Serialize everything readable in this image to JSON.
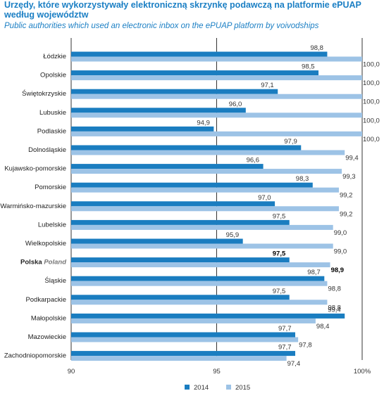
{
  "title": "Urzędy, które wykorzystywały elektroniczną skrzynkę podawczą na platformie ePUAP według województw",
  "subtitle": "Public authorities which used an electronic inbox on the ePUAP platform by voivodships",
  "colors": {
    "s2014": "#1a7dc0",
    "s2015": "#9dc3e6"
  },
  "chart_data": {
    "type": "bar",
    "orientation": "horizontal",
    "categories": [
      "Łódzkie",
      "Opolskie",
      "Świętokrzyskie",
      "Lubuskie",
      "Podlaskie",
      "Dolnośląskie",
      "Kujawsko-pomorskie",
      "Pomorskie",
      "Warmińsko-mazurskie",
      "Lubelskie",
      "Wielkopolskie",
      "Polska",
      "Śląskie",
      "Podkarpackie",
      "Małopolskie",
      "Mazowieckie",
      "Zachodniopomorskie"
    ],
    "highlight_category": "Polska",
    "highlight_label_en": "Poland",
    "series": [
      {
        "name": "2014",
        "values": [
          98.8,
          98.5,
          97.1,
          96.0,
          94.9,
          97.9,
          96.6,
          98.3,
          97.0,
          97.5,
          95.9,
          97.5,
          98.7,
          97.5,
          99.4,
          97.7,
          97.7
        ]
      },
      {
        "name": "2015",
        "values": [
          100.0,
          100.0,
          100.0,
          100.0,
          100.0,
          99.4,
          99.3,
          99.2,
          99.2,
          99.0,
          99.0,
          98.9,
          98.8,
          98.8,
          98.4,
          97.8,
          97.4
        ]
      }
    ],
    "value_labels": [
      [
        "98,8",
        "98,5",
        "97,1",
        "96,0",
        "94,9",
        "97,9",
        "96,6",
        "98,3",
        "97,0",
        "97,5",
        "95,9",
        "97,5",
        "98,7",
        "97,5",
        "99,4",
        "97,7",
        "97,7"
      ],
      [
        "100,0",
        "100,0",
        "100,0",
        "100,0",
        "100,0",
        "99,4",
        "99,3",
        "99,2",
        "99,2",
        "99,0",
        "99,0",
        "98,9",
        "98,8",
        "98,8",
        "98,4",
        "97,8",
        "97,4"
      ]
    ],
    "xlim": [
      90,
      100
    ],
    "xticks": [
      90,
      95,
      100
    ],
    "xtick_labels": [
      "90",
      "95",
      "100%"
    ],
    "grid": false,
    "legend_position": "bottom-center"
  }
}
